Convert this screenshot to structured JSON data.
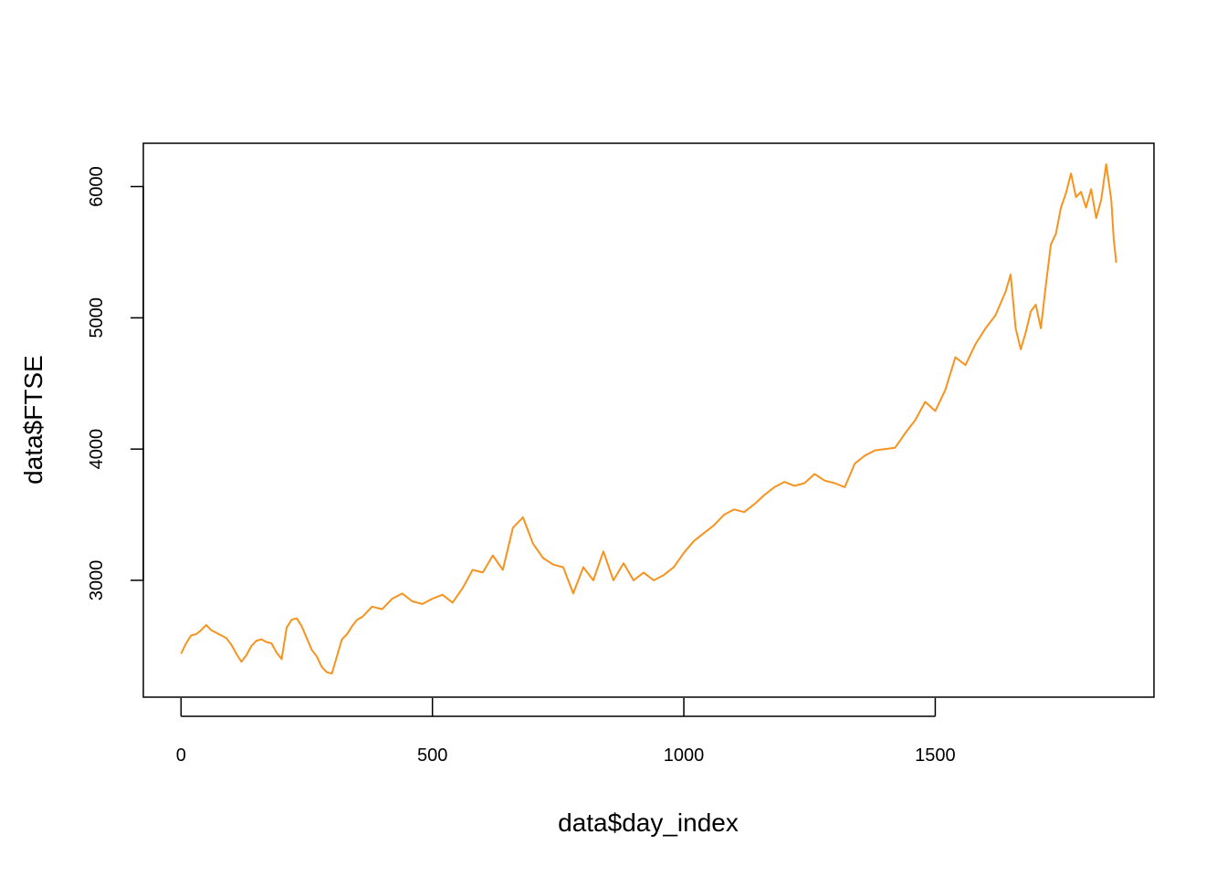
{
  "chart_data": {
    "type": "line",
    "xlabel": "data$day_index",
    "ylabel": "data$FTSE",
    "xlim": [
      -75,
      1935
    ],
    "ylim": [
      2110,
      6330
    ],
    "xticks": [
      0,
      500,
      1000,
      1500
    ],
    "yticks": [
      3000,
      4000,
      5000,
      6000
    ],
    "xtick_labels": [
      "0",
      "500",
      "1000",
      "1500"
    ],
    "ytick_labels": [
      "3000",
      "4000",
      "5000",
      "6000"
    ],
    "grid": false,
    "line_color": "#F7931E",
    "series": [
      {
        "x": [
          0,
          10,
          20,
          30,
          40,
          50,
          60,
          70,
          80,
          90,
          100,
          110,
          120,
          130,
          140,
          150,
          160,
          170,
          180,
          190,
          200,
          210,
          220,
          230,
          240,
          250,
          260,
          270,
          280,
          290,
          300,
          310,
          320,
          330,
          340,
          350,
          360,
          380,
          400,
          420,
          440,
          460,
          480,
          500,
          520,
          540,
          560,
          580,
          600,
          620,
          640,
          660,
          680,
          700,
          720,
          740,
          760,
          780,
          800,
          820,
          840,
          860,
          880,
          900,
          920,
          940,
          960,
          980,
          1000,
          1020,
          1040,
          1060,
          1080,
          1100,
          1120,
          1140,
          1160,
          1180,
          1200,
          1220,
          1240,
          1260,
          1280,
          1300,
          1320,
          1340,
          1360,
          1380,
          1400,
          1420,
          1440,
          1460,
          1480,
          1500,
          1520,
          1540,
          1560,
          1580,
          1600,
          1620,
          1640,
          1650,
          1660,
          1670,
          1680,
          1690,
          1700,
          1710,
          1720,
          1730,
          1740,
          1750,
          1760,
          1770,
          1780,
          1790,
          1800,
          1810,
          1820,
          1830,
          1840,
          1850,
          1855,
          1860
        ],
        "y": [
          2440,
          2520,
          2580,
          2590,
          2620,
          2660,
          2620,
          2600,
          2580,
          2560,
          2510,
          2440,
          2380,
          2430,
          2500,
          2540,
          2550,
          2530,
          2520,
          2450,
          2400,
          2640,
          2700,
          2710,
          2650,
          2560,
          2470,
          2420,
          2340,
          2300,
          2290,
          2420,
          2550,
          2590,
          2650,
          2700,
          2720,
          2800,
          2780,
          2860,
          2900,
          2840,
          2820,
          2860,
          2890,
          2830,
          2940,
          3080,
          3060,
          3190,
          3080,
          3400,
          3480,
          3280,
          3170,
          3120,
          3100,
          2900,
          3100,
          3000,
          3220,
          3000,
          3130,
          3000,
          3060,
          3000,
          3040,
          3100,
          3210,
          3300,
          3360,
          3420,
          3500,
          3540,
          3520,
          3580,
          3650,
          3710,
          3750,
          3720,
          3740,
          3810,
          3760,
          3740,
          3710,
          3890,
          3950,
          3990,
          4000,
          4010,
          4120,
          4220,
          4360,
          4290,
          4450,
          4700,
          4640,
          4800,
          4920,
          5020,
          5200,
          5330,
          4920,
          4760,
          4890,
          5050,
          5100,
          4920,
          5250,
          5560,
          5640,
          5840,
          5950,
          6100,
          5920,
          5960,
          5840,
          5980,
          5760,
          5900,
          6170,
          5900,
          5600,
          5420
        ]
      }
    ]
  }
}
